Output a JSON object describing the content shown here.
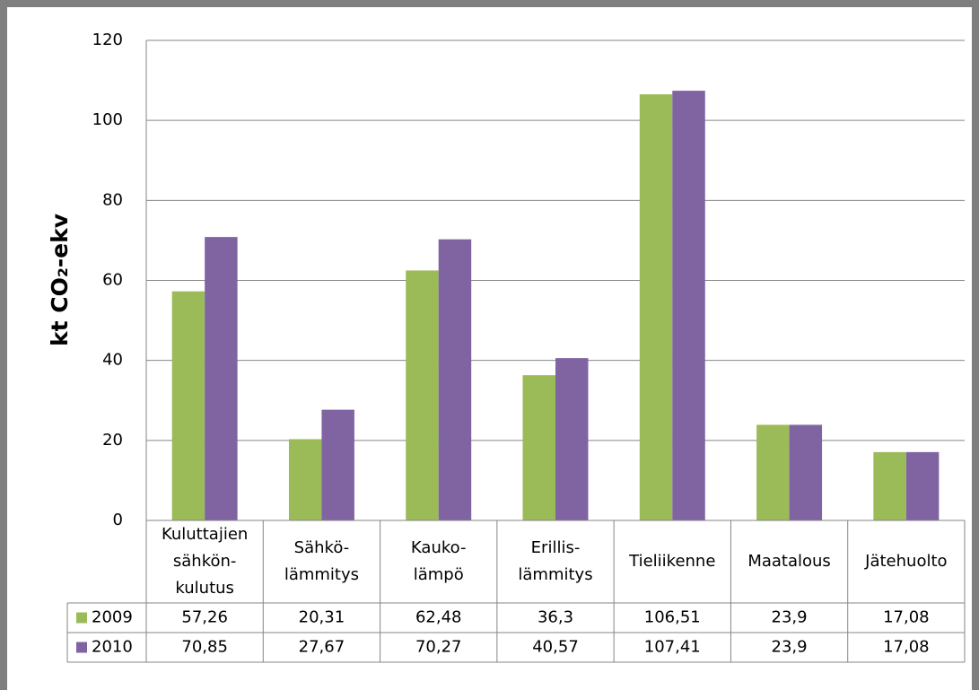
{
  "chart_data": {
    "type": "bar",
    "ylabel": "kt CO₂-ekv",
    "categories": [
      [
        "Kuluttajien",
        "sähkön-",
        "kulutus"
      ],
      [
        "Sähkö-",
        "lämmitys"
      ],
      [
        "Kauko-",
        "lämpö"
      ],
      [
        "Erillis-",
        "lämmitys"
      ],
      [
        "Tieliikenne"
      ],
      [
        "Maatalous"
      ],
      [
        "Jätehuolto"
      ]
    ],
    "series": [
      {
        "name": "2009",
        "color": "#9bbb59",
        "values": [
          57.26,
          20.31,
          62.48,
          36.3,
          106.51,
          23.9,
          17.08
        ],
        "value_labels": [
          "57,26",
          "20,31",
          "62,48",
          "36,3",
          "106,51",
          "23,9",
          "17,08"
        ]
      },
      {
        "name": "2010",
        "color": "#8064a2",
        "values": [
          70.85,
          27.67,
          70.27,
          40.57,
          107.41,
          23.9,
          17.08
        ],
        "value_labels": [
          "70,85",
          "27,67",
          "70,27",
          "40,57",
          "107,41",
          "23,9",
          "17,08"
        ]
      }
    ],
    "ylim": [
      0,
      120
    ],
    "yticks": [
      0,
      20,
      40,
      60,
      80,
      100,
      120
    ],
    "grid": true,
    "data_table": true
  }
}
